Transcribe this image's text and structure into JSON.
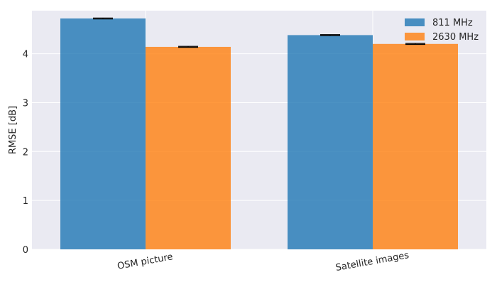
{
  "chart_data": {
    "type": "bar",
    "categories": [
      "OSM picture",
      "Satellite images"
    ],
    "series": [
      {
        "name": "811 MHz",
        "values": [
          4.72,
          4.38
        ],
        "errors": [
          0.01,
          0.01
        ],
        "color": "#1f77b4"
      },
      {
        "name": "2630 MHz",
        "values": [
          4.14,
          4.2
        ],
        "errors": [
          0.01,
          0.01
        ],
        "color": "#ff7f0e"
      }
    ],
    "ylabel": "RMSE [dB]",
    "xlabel": "",
    "ylim": [
      0,
      4.88
    ],
    "yticks": [
      0,
      1,
      2,
      3,
      4
    ],
    "grid": true,
    "legend": "top-right",
    "background": "#eaeaf2"
  }
}
